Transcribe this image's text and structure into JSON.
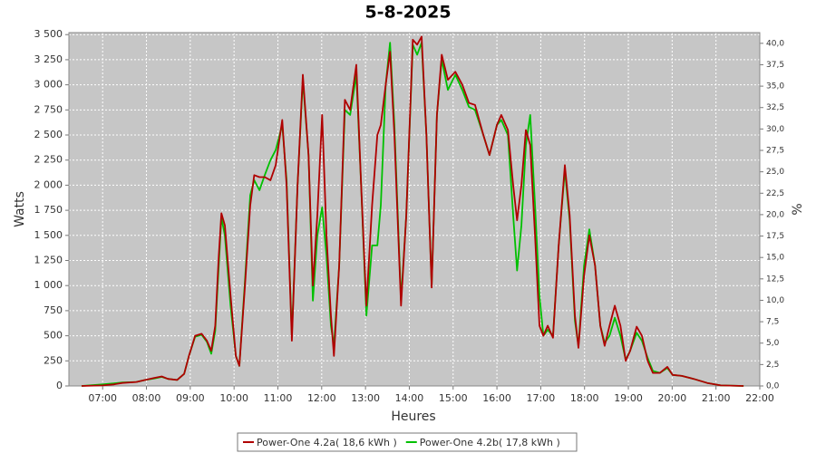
{
  "chart_data": {
    "type": "line",
    "title": "5-8-2025",
    "x_label": "Heures",
    "y_label": "Watts",
    "y2_label": "%",
    "grid": true,
    "legend": "bottom",
    "xlim": [
      6.23,
      22
    ],
    "xticks": [
      {
        "value": 7,
        "label": "07:00"
      },
      {
        "value": 8,
        "label": "08:00"
      },
      {
        "value": 9,
        "label": "09:00"
      },
      {
        "value": 10,
        "label": "10:00"
      },
      {
        "value": 11,
        "label": "11:00"
      },
      {
        "value": 12,
        "label": "12:00"
      },
      {
        "value": 13,
        "label": "13:00"
      },
      {
        "value": 14,
        "label": "14:00"
      },
      {
        "value": 15,
        "label": "15:00"
      },
      {
        "value": 16,
        "label": "16:00"
      },
      {
        "value": 17,
        "label": "17:00"
      },
      {
        "value": 18,
        "label": "18:00"
      },
      {
        "value": 19,
        "label": "19:00"
      },
      {
        "value": 20,
        "label": "20:00"
      },
      {
        "value": 21,
        "label": "21:00"
      },
      {
        "value": 22,
        "label": "22:00"
      }
    ],
    "ylim": [
      0,
      3520
    ],
    "yticks": [
      0,
      250,
      500,
      750,
      {
        "value": 1000,
        "label": "1 000"
      },
      {
        "value": 1250,
        "label": "1 250"
      },
      {
        "value": 1500,
        "label": "1 500"
      },
      {
        "value": 1750,
        "label": "1 750"
      },
      {
        "value": 2000,
        "label": "2 000"
      },
      {
        "value": 2250,
        "label": "2 250"
      },
      {
        "value": 2500,
        "label": "2 500"
      },
      {
        "value": 2750,
        "label": "2 750"
      },
      {
        "value": 3000,
        "label": "3 000"
      },
      {
        "value": 3250,
        "label": "3 250"
      },
      {
        "value": 3500,
        "label": "3 500"
      }
    ],
    "y2lim": [
      0,
      41.25
    ],
    "y2ticks": [
      {
        "value": 0,
        "label": "0,0"
      },
      {
        "value": 2.5,
        "label": "2,5"
      },
      {
        "value": 5,
        "label": "5,0"
      },
      {
        "value": 7.5,
        "label": "7,5"
      },
      {
        "value": 10,
        "label": "10,0"
      },
      {
        "value": 12.5,
        "label": "12,5"
      },
      {
        "value": 15,
        "label": "15,0"
      },
      {
        "value": 17.5,
        "label": "17,5"
      },
      {
        "value": 20,
        "label": "20,0"
      },
      {
        "value": 22.5,
        "label": "22,5"
      },
      {
        "value": 25,
        "label": "25,0"
      },
      {
        "value": 27.5,
        "label": "27,5"
      },
      {
        "value": 30,
        "label": "30,0"
      },
      {
        "value": 32.5,
        "label": "32,5"
      },
      {
        "value": 35,
        "label": "35,0"
      },
      {
        "value": 37.5,
        "label": "37,5"
      },
      {
        "value": 40,
        "label": "40,0"
      }
    ],
    "x": [
      6.52,
      7.0,
      7.25,
      7.45,
      7.77,
      7.97,
      8.18,
      8.35,
      8.49,
      8.7,
      8.86,
      8.97,
      9.11,
      9.26,
      9.38,
      9.48,
      9.57,
      9.65,
      9.71,
      9.79,
      9.92,
      10.04,
      10.12,
      10.25,
      10.37,
      10.46,
      10.58,
      10.7,
      10.83,
      10.95,
      11.1,
      11.2,
      11.32,
      11.45,
      11.57,
      11.7,
      11.8,
      11.9,
      12.01,
      12.11,
      12.21,
      12.28,
      12.4,
      12.53,
      12.65,
      12.79,
      12.9,
      13.02,
      13.15,
      13.27,
      13.35,
      13.46,
      13.56,
      13.66,
      13.81,
      13.93,
      14.08,
      14.18,
      14.28,
      14.39,
      14.51,
      14.63,
      14.74,
      14.88,
      15.05,
      15.21,
      15.36,
      15.5,
      15.69,
      15.83,
      16.0,
      16.1,
      16.25,
      16.37,
      16.46,
      16.56,
      16.66,
      16.76,
      16.87,
      16.97,
      17.06,
      17.16,
      17.28,
      17.41,
      17.55,
      17.66,
      17.78,
      17.86,
      17.99,
      18.11,
      18.24,
      18.36,
      18.46,
      18.57,
      18.69,
      18.82,
      18.94,
      19.04,
      19.19,
      19.31,
      19.44,
      19.56,
      19.72,
      19.89,
      20.01,
      20.22,
      20.49,
      20.8,
      21.11,
      21.63
    ],
    "series": [
      {
        "name": "Power-One 4.2a( 18,6 kWh )",
        "color": "#b00000",
        "values": [
          0,
          5,
          15,
          30,
          40,
          60,
          80,
          95,
          70,
          60,
          120,
          300,
          500,
          520,
          450,
          350,
          600,
          1300,
          1720,
          1600,
          900,
          300,
          200,
          1000,
          1800,
          2100,
          2080,
          2080,
          2050,
          2200,
          2650,
          2000,
          450,
          2000,
          3100,
          2300,
          1000,
          1700,
          2700,
          1500,
          700,
          300,
          1200,
          2850,
          2750,
          3200,
          2000,
          800,
          1800,
          2500,
          2600,
          3000,
          3330,
          2500,
          800,
          1700,
          3450,
          3400,
          3480,
          2500,
          980,
          2700,
          3300,
          3050,
          3130,
          3000,
          2820,
          2800,
          2500,
          2300,
          2600,
          2700,
          2550,
          2000,
          1650,
          2000,
          2550,
          2400,
          1500,
          600,
          500,
          600,
          480,
          1400,
          2200,
          1700,
          700,
          380,
          1100,
          1500,
          1200,
          600,
          400,
          600,
          800,
          600,
          250,
          350,
          590,
          500,
          250,
          130,
          130,
          190,
          110,
          100,
          70,
          30,
          5,
          0
        ]
      },
      {
        "name": "Power-One 4.2b( 17,8 kWh )",
        "color": "#00c000",
        "values": [
          0,
          15,
          25,
          35,
          40,
          60,
          75,
          90,
          70,
          60,
          120,
          300,
          490,
          510,
          440,
          320,
          550,
          1200,
          1680,
          1500,
          800,
          300,
          200,
          1050,
          1900,
          2050,
          1950,
          2100,
          2250,
          2350,
          2600,
          2050,
          500,
          2000,
          3050,
          2300,
          850,
          1500,
          1780,
          1300,
          600,
          400,
          1200,
          2750,
          2700,
          3100,
          2000,
          700,
          1400,
          1400,
          1800,
          3000,
          3420,
          2600,
          850,
          1700,
          3400,
          3300,
          3420,
          2500,
          1000,
          2700,
          3250,
          2950,
          3100,
          2950,
          2780,
          2750,
          2500,
          2300,
          2600,
          2650,
          2500,
          1700,
          1150,
          1600,
          2400,
          2700,
          1800,
          900,
          500,
          560,
          500,
          1400,
          2150,
          1650,
          650,
          400,
          1200,
          1560,
          1200,
          600,
          430,
          500,
          680,
          500,
          260,
          350,
          530,
          450,
          280,
          150,
          130,
          180,
          110,
          100,
          70,
          30,
          5,
          0
        ]
      }
    ]
  }
}
